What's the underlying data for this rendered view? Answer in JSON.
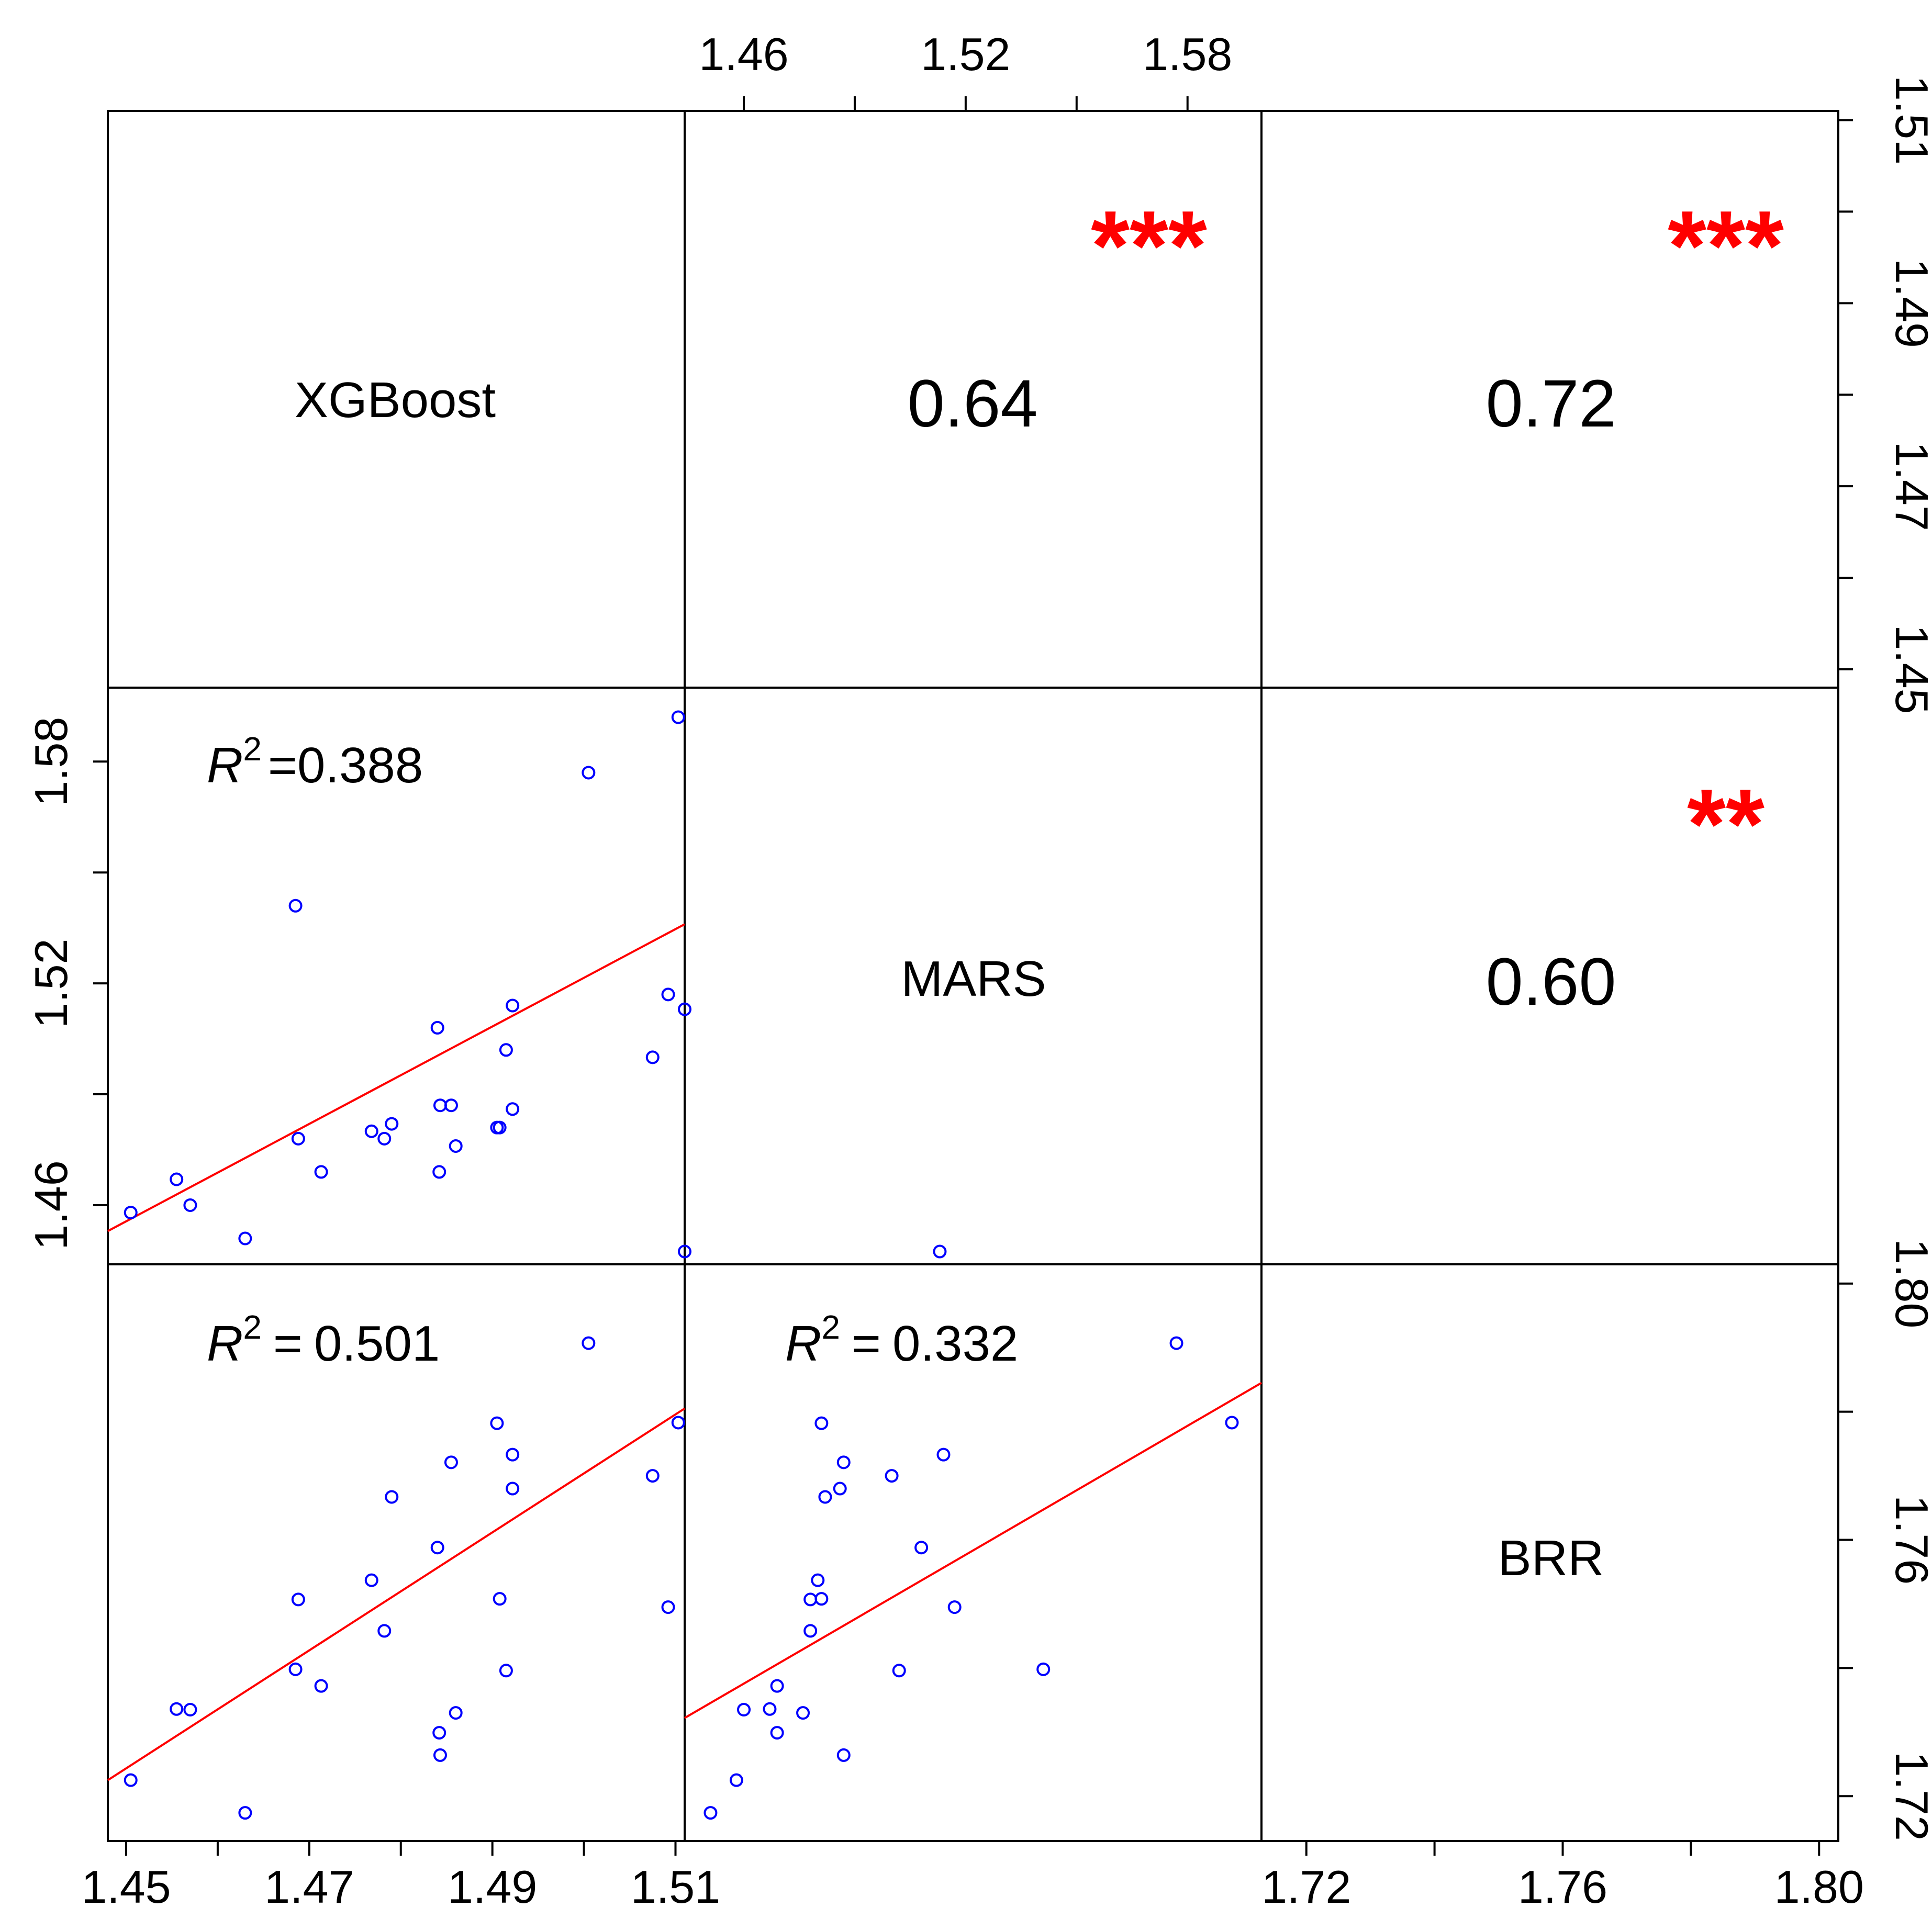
{
  "chart_data": {
    "type": "scatter",
    "variables": [
      "XGBoost",
      "MARS",
      "BRR"
    ],
    "colors": {
      "points": "#0000ff",
      "fit_line": "#ff0000",
      "significance": "#ff0000",
      "frame": "#000000"
    },
    "axes": {
      "XGBoost": {
        "range": [
          1.448,
          1.511
        ],
        "ticks": [
          "1.45",
          "1.47",
          "1.49",
          "1.51"
        ]
      },
      "MARS": {
        "range": [
          1.444,
          1.6
        ],
        "ticks": [
          "1.46",
          "1.52",
          "1.58"
        ]
      },
      "BRR": {
        "range": [
          1.713,
          1.803
        ],
        "ticks": [
          "1.72",
          "1.76",
          "1.80"
        ]
      }
    },
    "correlations": [
      {
        "pair": [
          "XGBoost",
          "MARS"
        ],
        "value": "0.64",
        "significance": "***"
      },
      {
        "pair": [
          "XGBoost",
          "BRR"
        ],
        "value": "0.72",
        "significance": "***"
      },
      {
        "pair": [
          "MARS",
          "BRR"
        ],
        "value": "0.60",
        "significance": "**"
      }
    ],
    "r_squared": [
      {
        "pair": [
          "XGBoost",
          "MARS"
        ],
        "label": "R",
        "sup": "2",
        "eq": "=",
        "value": "0.388"
      },
      {
        "pair": [
          "XGBoost",
          "BRR"
        ],
        "label": "R",
        "sup": "2",
        "eq": "=",
        "value": "0.501"
      },
      {
        "pair": [
          "MARS",
          "BRR"
        ],
        "label": "R",
        "sup": "2",
        "eq": "=",
        "value": "0.332"
      }
    ],
    "fit_lines": [
      {
        "x_var": "XGBoost",
        "y_var": "MARS",
        "x": [
          1.448,
          1.511
        ],
        "y": [
          1.453,
          1.536
        ]
      },
      {
        "x_var": "XGBoost",
        "y_var": "BRR",
        "x": [
          1.448,
          1.511
        ],
        "y": [
          1.7225,
          1.7805
        ]
      },
      {
        "x_var": "MARS",
        "y_var": "BRR",
        "x": [
          1.444,
          1.6
        ],
        "y": [
          1.7322,
          1.7845
        ]
      }
    ],
    "points": [
      {
        "xgb": 1.4505,
        "mars": 1.458,
        "brr": 1.7225
      },
      {
        "xgb": 1.4555,
        "mars": 1.467,
        "brr": 1.7336
      },
      {
        "xgb": 1.457,
        "mars": 1.46,
        "brr": 1.7335
      },
      {
        "xgb": 1.463,
        "mars": 1.451,
        "brr": 1.7174
      },
      {
        "xgb": 1.4685,
        "mars": 1.541,
        "brr": 1.7398
      },
      {
        "xgb": 1.4688,
        "mars": 1.478,
        "brr": 1.7507
      },
      {
        "xgb": 1.4713,
        "mars": 1.469,
        "brr": 1.7372
      },
      {
        "xgb": 1.4768,
        "mars": 1.48,
        "brr": 1.7537
      },
      {
        "xgb": 1.4782,
        "mars": 1.478,
        "brr": 1.7458
      },
      {
        "xgb": 1.479,
        "mars": 1.482,
        "brr": 1.7667
      },
      {
        "xgb": 1.484,
        "mars": 1.508,
        "brr": 1.7588
      },
      {
        "xgb": 1.4842,
        "mars": 1.469,
        "brr": 1.7299
      },
      {
        "xgb": 1.4843,
        "mars": 1.487,
        "brr": 1.7264
      },
      {
        "xgb": 1.4855,
        "mars": 1.487,
        "brr": 1.7721
      },
      {
        "xgb": 1.486,
        "mars": 1.476,
        "brr": 1.733
      },
      {
        "xgb": 1.4905,
        "mars": 1.481,
        "brr": 1.7782
      },
      {
        "xgb": 1.4908,
        "mars": 1.481,
        "brr": 1.7508
      },
      {
        "xgb": 1.4915,
        "mars": 1.502,
        "brr": 1.7396
      },
      {
        "xgb": 1.4922,
        "mars": 1.486,
        "brr": 1.768
      },
      {
        "xgb": 1.4922,
        "mars": 1.514,
        "brr": 1.7733
      },
      {
        "xgb": 1.5005,
        "mars": 1.577,
        "brr": 1.7907
      },
      {
        "xgb": 1.5075,
        "mars": 1.5,
        "brr": 1.77
      },
      {
        "xgb": 1.5092,
        "mars": 1.517,
        "brr": 1.7495
      },
      {
        "xgb": 1.5103,
        "mars": 1.592,
        "brr": 1.7783
      },
      {
        "xgb": 1.511,
        "mars": 1.513,
        "brr": 1.805
      }
    ]
  }
}
